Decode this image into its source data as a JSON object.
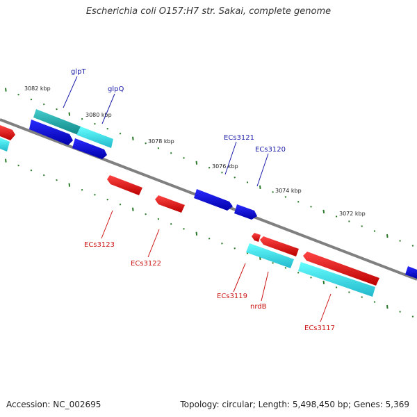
{
  "title": "Escherichia coli O157:H7 str. Sakai, complete genome",
  "footer": {
    "accession": "Accession: NC_002695",
    "summary": "Topology: circular; Length: 5,498,450 bp; Genes: 5,369"
  },
  "colors": {
    "backbone": "#808080",
    "tick": "#2a7a2a",
    "forward_gene": "#0000dd",
    "forward_gene_light": "#33dddd",
    "reverse_gene": "#ee1111",
    "reverse_gene_light": "#33dddd",
    "label_forward": "#1a1aaa",
    "label_reverse": "#cc1111"
  },
  "ticks": [
    "3082 kbp",
    "3080 kbp",
    "3078 kbp",
    "3076 kbp",
    "3074 kbp",
    "3072 kbp"
  ],
  "genes_forward": [
    "glpT",
    "glpQ",
    "ECs3121",
    "ECs3120"
  ],
  "genes_reverse": [
    "ECs3123",
    "ECs3122",
    "ECs3119",
    "nrdB",
    "ECs3117"
  ]
}
